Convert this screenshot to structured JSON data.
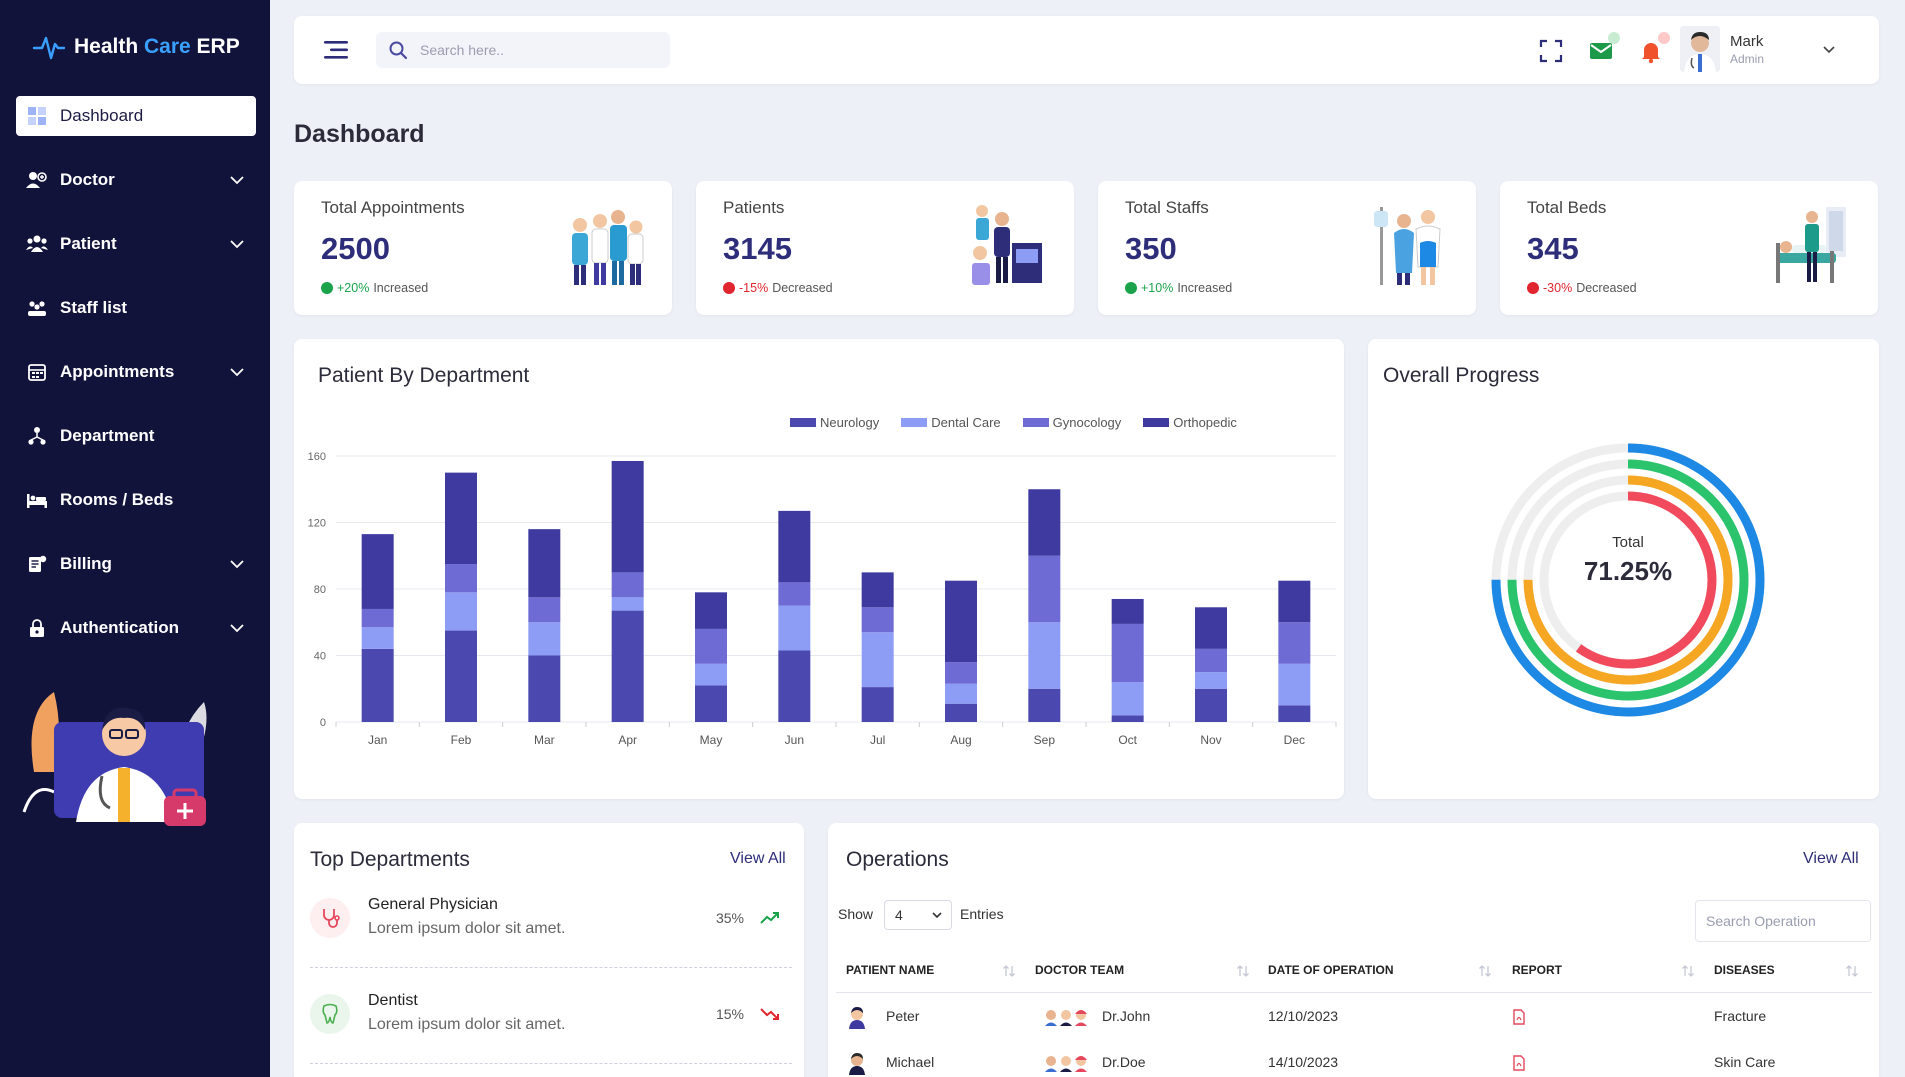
{
  "app": {
    "logo_main": "Health ",
    "logo_accent": "Care",
    "logo_suffix": " ERP"
  },
  "sidebar": {
    "items": [
      {
        "label": "Dashboard",
        "icon": "grid-icon",
        "active": true,
        "has_children": false
      },
      {
        "label": "Doctor",
        "icon": "doctor-icon",
        "has_children": true
      },
      {
        "label": "Patient",
        "icon": "patients-icon",
        "has_children": true
      },
      {
        "label": "Staff list",
        "icon": "staff-icon",
        "has_children": false
      },
      {
        "label": "Appointments",
        "icon": "calendar-icon",
        "has_children": true
      },
      {
        "label": "Department",
        "icon": "department-icon",
        "has_children": false
      },
      {
        "label": "Rooms / Beds",
        "icon": "bed-icon",
        "has_children": false
      },
      {
        "label": "Billing",
        "icon": "billing-icon",
        "has_children": true
      },
      {
        "label": "Authentication",
        "icon": "lock-icon",
        "has_children": true
      }
    ]
  },
  "header": {
    "search_placeholder": "Search here..",
    "user_name": "Mark",
    "user_role": "Admin"
  },
  "page": {
    "title": "Dashboard"
  },
  "stats": [
    {
      "label": "Total Appointments",
      "value": "2500",
      "change": "+20%",
      "trend_text": "Increased",
      "direction": "up"
    },
    {
      "label": "Patients",
      "value": "3145",
      "change": "-15%",
      "trend_text": "Decreased",
      "direction": "down"
    },
    {
      "label": "Total Staffs",
      "value": "350",
      "change": "+10%",
      "trend_text": "Increased",
      "direction": "up"
    },
    {
      "label": "Total Beds",
      "value": "345",
      "change": "-30%",
      "trend_text": "Decreased",
      "direction": "down"
    }
  ],
  "patient_chart": {
    "title": "Patient By Department"
  },
  "chart_data": {
    "type": "bar",
    "stacked": true,
    "categories": [
      "Jan",
      "Feb",
      "Mar",
      "Apr",
      "May",
      "Jun",
      "Jul",
      "Aug",
      "Sep",
      "Oct",
      "Nov",
      "Dec"
    ],
    "series": [
      {
        "name": "Neurology",
        "color": "#4b48b0",
        "values": [
          44,
          55,
          40,
          67,
          22,
          43,
          21,
          11,
          20,
          4,
          20,
          10
        ]
      },
      {
        "name": "Dental Care",
        "color": "#8d9cf4",
        "values": [
          13,
          23,
          20,
          8,
          13,
          27,
          33,
          12,
          40,
          20,
          10,
          25
        ]
      },
      {
        "name": "Gynocology",
        "color": "#6e6bd4",
        "values": [
          11,
          17,
          15,
          15,
          21,
          14,
          15,
          13,
          40,
          35,
          14,
          25
        ]
      },
      {
        "name": "Orthopedic",
        "color": "#3e3aa0",
        "values": [
          45,
          55,
          41,
          67,
          22,
          43,
          21,
          49,
          40,
          15,
          25,
          25
        ]
      }
    ],
    "ylim": [
      0,
      160
    ],
    "yticks": [
      0,
      40,
      80,
      120,
      160
    ],
    "legend_position": "top-right",
    "grid": true
  },
  "progress": {
    "title": "Overall Progress",
    "center_label": "Total",
    "center_value": "71.25%",
    "rings": [
      {
        "color": "#1e88e5",
        "fraction": 0.75
      },
      {
        "color": "#2bc46d",
        "fraction": 0.75
      },
      {
        "color": "#f5a623",
        "fraction": 0.75
      },
      {
        "color": "#f04a5c",
        "fraction": 0.6
      }
    ]
  },
  "top_departments": {
    "title": "Top Departments",
    "view_all": "View All",
    "items": [
      {
        "name": "General Physician",
        "desc": "Lorem ipsum dolor sit amet.",
        "pct": "35%",
        "trend": "up"
      },
      {
        "name": "Dentist",
        "desc": "Lorem ipsum dolor sit amet.",
        "pct": "15%",
        "trend": "down"
      }
    ]
  },
  "operations": {
    "title": "Operations",
    "view_all": "View All",
    "show_label": "Show",
    "entries_value": "4",
    "entries_label": "Entries",
    "search_placeholder": "Search Operation",
    "columns": [
      "PATIENT NAME",
      "DOCTOR TEAM",
      "DATE OF OPERATION",
      "REPORT",
      "DISEASES"
    ],
    "rows": [
      {
        "patient": "Peter",
        "doctor": "Dr.John",
        "date": "12/10/2023",
        "disease": "Fracture"
      },
      {
        "patient": "Michael",
        "doctor": "Dr.Doe",
        "date": "14/10/2023",
        "disease": "Skin Care"
      }
    ]
  }
}
